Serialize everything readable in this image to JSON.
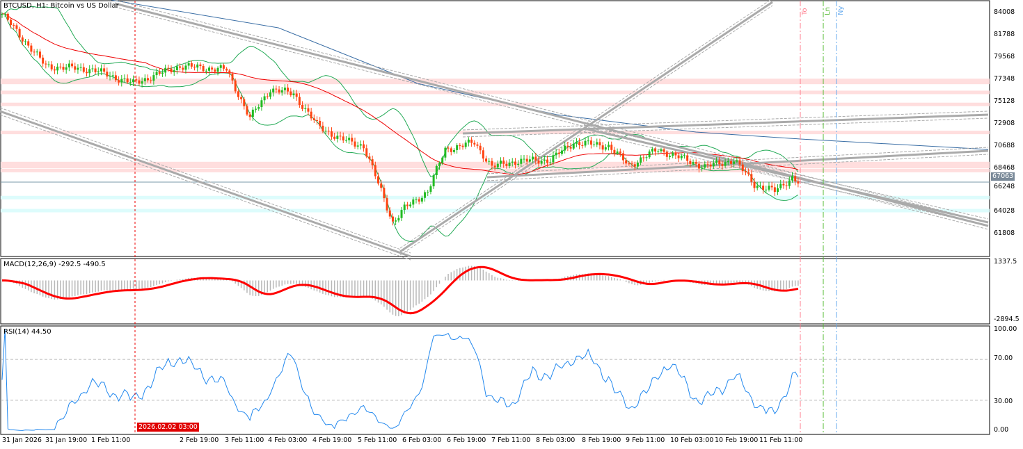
{
  "window": {
    "title": "BTCUSD, H1:  Bitcoin vs US Dollar"
  },
  "current_price": "67063",
  "highlighted_time": "2026.02.02 03:00",
  "vlines": [
    {
      "label": "To",
      "color": "#ff7f8f"
    },
    {
      "label": "Ln",
      "color": "#55bb33"
    },
    {
      "label": "Ny",
      "color": "#66aaee"
    }
  ],
  "price_axis": [
    "84008",
    "81788",
    "79568",
    "77348",
    "75128",
    "72908",
    "70688",
    "68468",
    "66248",
    "64028",
    "61808"
  ],
  "macd": {
    "label": "MACD(12,26,9) -292.5 -490.5",
    "axis": [
      "1337.5",
      "-2894.5"
    ]
  },
  "rsi": {
    "label": "RSI(14) 44.50",
    "axis": [
      "100.00",
      "70.00",
      "30.00",
      "0.00"
    ]
  },
  "time_axis": [
    "31 Jan 2026",
    "31 Jan 19:00",
    "1 Feb 11:00",
    "2 Feb 19:00",
    "3 Feb 11:00",
    "4 Feb 03:00",
    "4 Feb 19:00",
    "5 Feb 11:00",
    "6 Feb 03:00",
    "6 Feb 19:00",
    "7 Feb 11:00",
    "8 Feb 03:00",
    "8 Feb 19:00",
    "9 Feb 11:00",
    "10 Feb 03:00",
    "10 Feb 19:00",
    "11 Feb 11:00"
  ],
  "colors": {
    "bull": "#22bb22",
    "bear": "#ff4411",
    "ma_red": "#ee0000",
    "ma_blue": "#3a6ea5",
    "bands": "#22aa55",
    "rsi": "#2288ee",
    "macd_signal": "#ff0000",
    "macd_hist": "#b8b8b8"
  },
  "chart_data": {
    "type": "candlestick",
    "symbol": "BTCUSD",
    "timeframe": "H1",
    "ylim": [
      61000,
      84600
    ],
    "close_waypoints": [
      [
        0,
        83870
      ],
      [
        15,
        78660
      ],
      [
        31,
        78300
      ],
      [
        45,
        76930
      ],
      [
        61,
        78660
      ],
      [
        77,
        78300
      ],
      [
        85,
        73460
      ],
      [
        92,
        76370
      ],
      [
        100,
        75890
      ],
      [
        108,
        72770
      ],
      [
        116,
        71380
      ],
      [
        124,
        70690
      ],
      [
        130,
        66180
      ],
      [
        134,
        63060
      ],
      [
        138,
        64450
      ],
      [
        146,
        66180
      ],
      [
        152,
        70340
      ],
      [
        162,
        71030
      ],
      [
        168,
        68600
      ],
      [
        176,
        69160
      ],
      [
        188,
        69300
      ],
      [
        196,
        71030
      ],
      [
        208,
        70690
      ],
      [
        215,
        68740
      ],
      [
        225,
        70340
      ],
      [
        241,
        68600
      ],
      [
        251,
        69300
      ],
      [
        258,
        66870
      ],
      [
        265,
        66180
      ],
      [
        271,
        67570
      ],
      [
        273,
        67063
      ]
    ],
    "hlevels_pink": [
      77200,
      76000,
      74800,
      72000,
      68900,
      68600,
      68200
    ],
    "hlevels_cyan": [
      65500,
      64200
    ]
  }
}
